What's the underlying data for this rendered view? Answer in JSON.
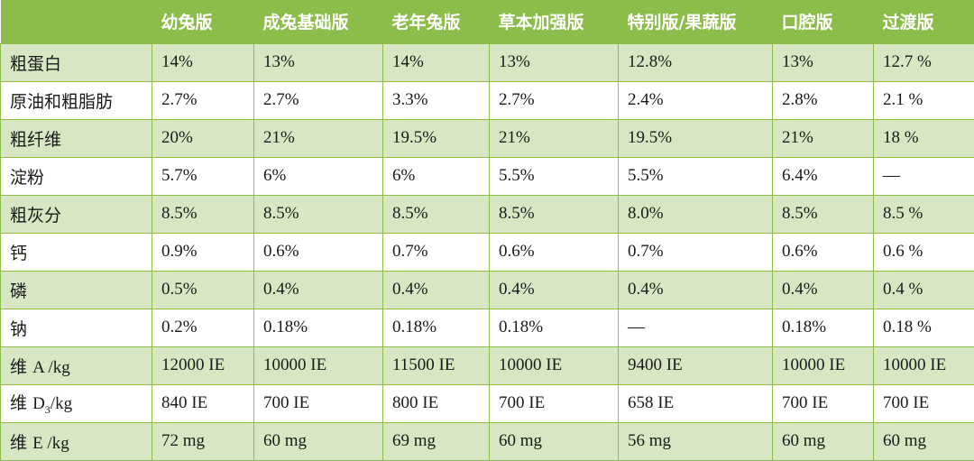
{
  "table": {
    "corner": "",
    "columns": [
      "幼兔版",
      "成兔基础版",
      "老年兔版",
      "草本加强版",
      "特别版/果蔬版",
      "口腔版",
      "过渡版"
    ],
    "rows": [
      {
        "label": "粗蛋白",
        "values": [
          "14%",
          "13%",
          "14%",
          "13%",
          "12.8%",
          "13%",
          "12.7 %"
        ]
      },
      {
        "label": "原油和粗脂肪",
        "values": [
          "2.7%",
          "2.7%",
          "3.3%",
          "2.7%",
          "2.4%",
          "2.8%",
          "2.1 %"
        ]
      },
      {
        "label": "粗纤维",
        "values": [
          "20%",
          "21%",
          "19.5%",
          "21%",
          "19.5%",
          "21%",
          "18 %"
        ]
      },
      {
        "label": "淀粉",
        "values": [
          "5.7%",
          "6%",
          "6%",
          "5.5%",
          "5.5%",
          "6.4%",
          "—"
        ]
      },
      {
        "label": "粗灰分",
        "values": [
          "8.5%",
          "8.5%",
          "8.5%",
          "8.5%",
          "8.0%",
          "8.5%",
          "8.5 %"
        ]
      },
      {
        "label": "钙",
        "values": [
          "0.9%",
          "0.6%",
          "0.7%",
          "0.6%",
          "0.7%",
          "0.6%",
          "0.6 %"
        ]
      },
      {
        "label": "磷",
        "values": [
          "0.5%",
          "0.4%",
          "0.4%",
          "0.4%",
          "0.4%",
          "0.4%",
          "0.4 %"
        ]
      },
      {
        "label": "钠",
        "values": [
          "0.2%",
          "0.18%",
          "0.18%",
          "0.18%",
          "—",
          "0.18%",
          "0.18 %"
        ]
      },
      {
        "label_cn": "维",
        "label_latin": "A /kg",
        "values": [
          "12000 IE",
          "10000 IE",
          "11500 IE",
          "10000 IE",
          "9400 IE",
          "10000 IE",
          "10000 IE"
        ]
      },
      {
        "label_cn": "维",
        "label_latin": "D",
        "label_sub": "3",
        "label_suffix": "/kg",
        "values": [
          "840 IE",
          "700 IE",
          "800 IE",
          "700 IE",
          "658 IE",
          "700 IE",
          "700 IE"
        ]
      },
      {
        "label_cn": "维",
        "label_latin": "E /kg",
        "values": [
          "72 mg",
          "60 mg",
          "69 mg",
          "60 mg",
          "56 mg",
          "60 mg",
          "60 mg"
        ]
      }
    ]
  }
}
